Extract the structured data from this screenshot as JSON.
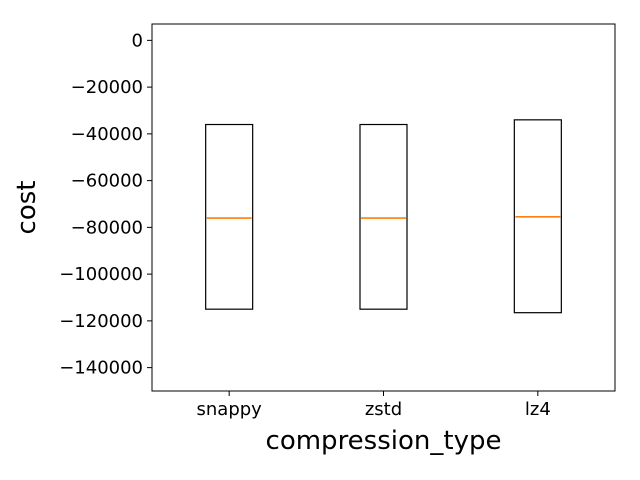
{
  "chart_data": {
    "type": "box",
    "title": "",
    "xlabel": "compression_type",
    "ylabel": "cost",
    "categories": [
      "snappy",
      "zstd",
      "lz4"
    ],
    "highlight_category": "lz4",
    "boxes": [
      {
        "category": "snappy",
        "q1": -115000,
        "median": -76000,
        "q3": -36000
      },
      {
        "category": "zstd",
        "q1": -115000,
        "median": -76000,
        "q3": -36000
      },
      {
        "category": "lz4",
        "q1": -116500,
        "median": -75500,
        "q3": -34000
      }
    ],
    "ylim": [
      -150000,
      7000
    ],
    "yticks": [
      0,
      -20000,
      -40000,
      -60000,
      -80000,
      -100000,
      -120000,
      -140000
    ],
    "ytick_labels": [
      "0",
      "−20000",
      "−40000",
      "−60000",
      "−80000",
      "−100000",
      "−120000",
      "−140000"
    ],
    "grid": false,
    "colors": {
      "box_edge": "#000000",
      "median": "#ff7f0e",
      "highlight_label": "#ff0000",
      "text": "#000000"
    }
  }
}
